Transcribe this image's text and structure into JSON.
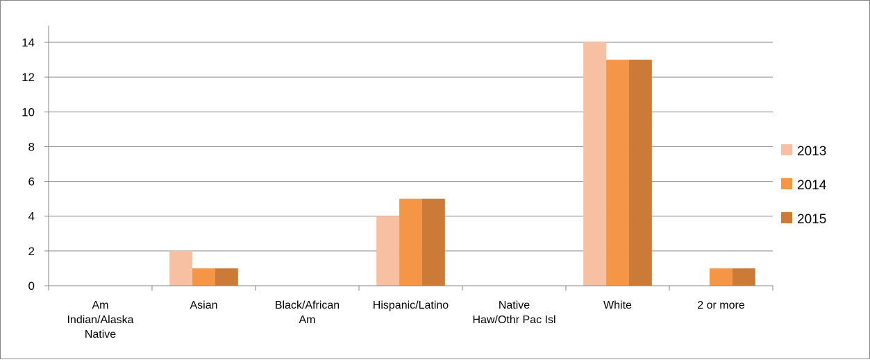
{
  "chart_data": {
    "type": "bar",
    "categories": [
      [
        "Am",
        "Indian/Alaska",
        "Native"
      ],
      [
        "Asian"
      ],
      [
        "Black/African",
        "Am"
      ],
      [
        "Hispanic/Latino"
      ],
      [
        "Native",
        "Haw/Othr Pac Isl"
      ],
      [
        "White"
      ],
      [
        "2 or more"
      ]
    ],
    "series": [
      {
        "name": "2013",
        "values": [
          0,
          2,
          0,
          4,
          0,
          14,
          0
        ],
        "color": "#F8C0A2"
      },
      {
        "name": "2014",
        "values": [
          0,
          1,
          0,
          5,
          0,
          13,
          1
        ],
        "color": "#F59646"
      },
      {
        "name": "2015",
        "values": [
          0,
          1,
          0,
          5,
          0,
          13,
          1
        ],
        "color": "#CC7A38"
      }
    ],
    "yticks": [
      0,
      2,
      4,
      6,
      8,
      10,
      12,
      14
    ],
    "ylim": [
      0,
      14
    ],
    "grid": true,
    "legend_position": "right",
    "title": "",
    "xlabel": "",
    "ylabel": ""
  }
}
